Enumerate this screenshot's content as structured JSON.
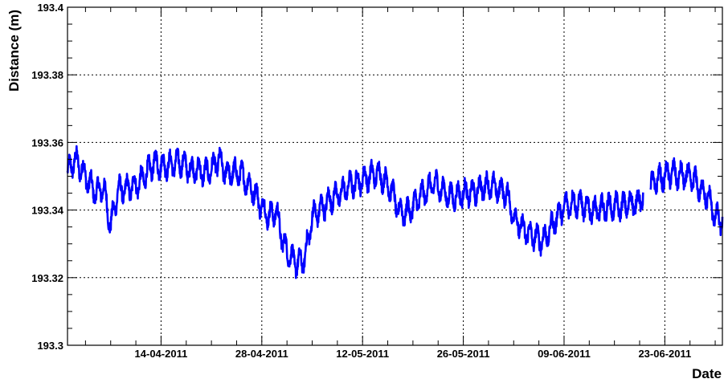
{
  "chart_data": {
    "type": "line",
    "xlabel": "Date",
    "ylabel": "Distance (m)",
    "ylim": [
      193.3,
      193.4
    ],
    "xlim": [
      "2011-04-01",
      "2011-07-01"
    ],
    "grid": true,
    "y_ticks": [
      "193.3",
      "193.32",
      "193.34",
      "193.36",
      "193.38",
      "193.4"
    ],
    "x_ticks": [
      {
        "date": "2011-04-14",
        "label": "14-04-2011"
      },
      {
        "date": "2011-04-28",
        "label": "28-04-2011"
      },
      {
        "date": "2011-05-12",
        "label": "12-05-2011"
      },
      {
        "date": "2011-05-26",
        "label": "26-05-2011"
      },
      {
        "date": "2011-06-09",
        "label": "09-06-2011"
      },
      {
        "date": "2011-06-23",
        "label": "23-06-2011"
      }
    ],
    "series": [
      {
        "color": "#0000ff",
        "band_width": 0.008,
        "x": [
          "2011-04-01",
          "2011-04-02",
          "2011-04-03",
          "2011-04-04",
          "2011-04-05",
          "2011-04-06",
          "2011-04-07",
          "2011-04-08",
          "2011-04-09",
          "2011-04-10",
          "2011-04-11",
          "2011-04-12",
          "2011-04-13",
          "2011-04-14",
          "2011-04-15",
          "2011-04-16",
          "2011-04-17",
          "2011-04-18",
          "2011-04-19",
          "2011-04-20",
          "2011-04-21",
          "2011-04-22",
          "2011-04-23",
          "2011-04-24",
          "2011-04-25",
          "2011-04-26",
          "2011-04-27",
          "2011-04-28",
          "2011-04-29",
          "2011-04-30",
          "2011-05-01",
          "2011-05-02",
          "2011-05-03",
          "2011-05-04",
          "2011-05-05",
          "2011-05-06",
          "2011-05-07",
          "2011-05-08",
          "2011-05-09",
          "2011-05-10",
          "2011-05-11",
          "2011-05-12",
          "2011-05-13",
          "2011-05-14",
          "2011-05-15",
          "2011-05-16",
          "2011-05-17",
          "2011-05-18",
          "2011-05-19",
          "2011-05-20",
          "2011-05-21",
          "2011-05-22",
          "2011-05-23",
          "2011-05-24",
          "2011-05-25",
          "2011-05-26",
          "2011-05-27",
          "2011-05-28",
          "2011-05-29",
          "2011-05-30",
          "2011-05-31",
          "2011-06-01",
          "2011-06-02",
          "2011-06-03",
          "2011-06-04",
          "2011-06-05",
          "2011-06-06",
          "2011-06-07",
          "2011-06-08",
          "2011-06-09",
          "2011-06-10",
          "2011-06-11",
          "2011-06-12",
          "2011-06-13",
          "2011-06-14",
          "2011-06-15",
          "2011-06-16",
          "2011-06-17",
          "2011-06-18",
          "2011-06-19",
          "2011-06-20",
          "2011-06-21",
          "2011-06-22",
          "2011-06-23",
          "2011-06-24",
          "2011-06-25",
          "2011-06-26",
          "2011-06-27",
          "2011-06-28",
          "2011-06-29",
          "2011-06-30",
          "2011-07-01"
        ],
        "y": [
          193.351,
          193.355,
          193.352,
          193.348,
          193.345,
          193.347,
          193.335,
          193.346,
          193.346,
          193.347,
          193.348,
          193.351,
          193.354,
          193.353,
          193.353,
          193.354,
          193.354,
          193.352,
          193.352,
          193.351,
          193.352,
          193.355,
          193.351,
          193.351,
          193.351,
          193.348,
          193.345,
          193.341,
          193.338,
          193.34,
          193.33,
          193.326,
          193.324,
          193.326,
          193.338,
          193.34,
          193.342,
          193.344,
          193.345,
          193.347,
          193.348,
          193.349,
          193.35,
          193.351,
          193.349,
          193.346,
          193.34,
          193.339,
          193.341,
          193.344,
          193.346,
          193.348,
          193.346,
          193.344,
          193.344,
          193.345,
          193.345,
          193.346,
          193.347,
          193.347,
          193.346,
          193.345,
          193.338,
          193.335,
          193.333,
          193.332,
          193.331,
          193.334,
          193.338,
          193.341,
          193.342,
          193.342,
          193.341,
          193.34,
          193.34,
          193.341,
          193.341,
          193.341,
          193.342,
          193.342,
          193.344,
          193.347,
          193.349,
          193.35,
          193.351,
          193.35,
          193.35,
          193.349,
          193.346,
          193.344,
          193.338,
          193.337
        ],
        "gap": [
          "2011-06-20",
          "2011-06-21"
        ]
      }
    ]
  }
}
